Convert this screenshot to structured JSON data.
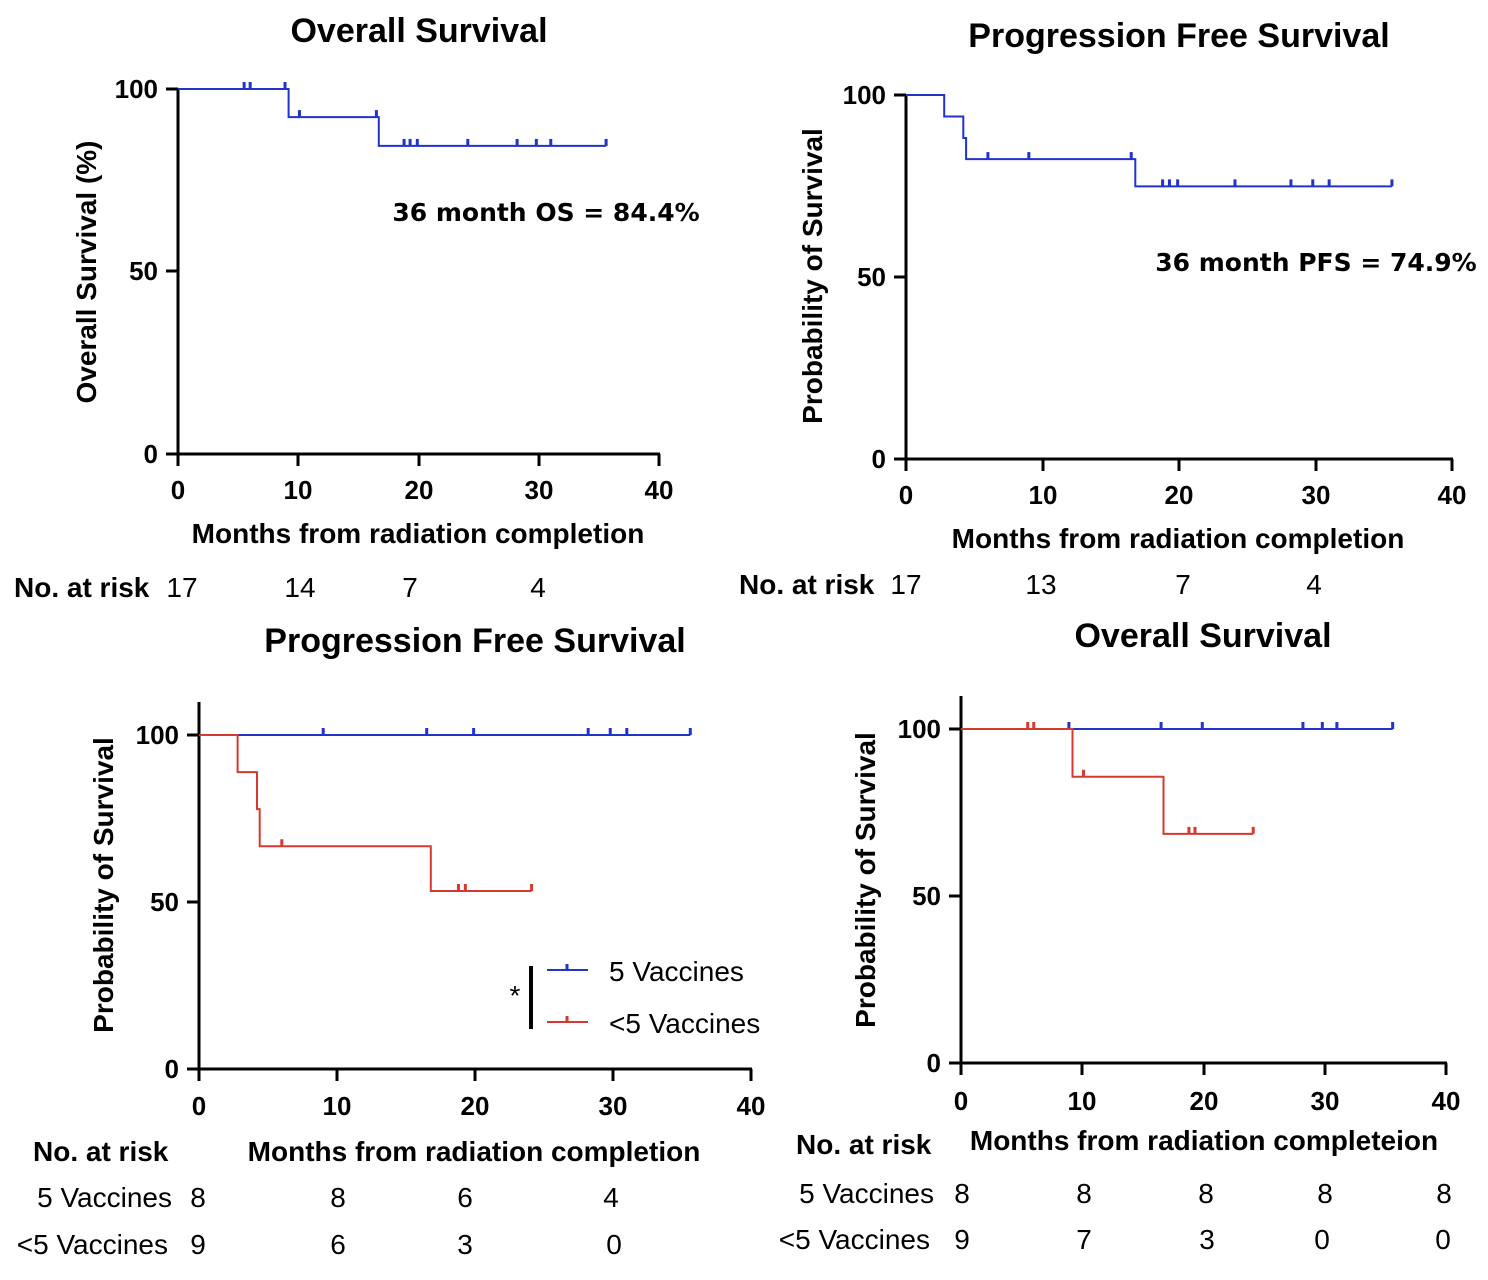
{
  "colors": {
    "blue": "#2233cc",
    "red": "#d63a2e",
    "axis": "#000000"
  },
  "chart_data": [
    {
      "type": "line",
      "step": true,
      "title": "Overall Survival",
      "xlabel": "Months from radiation completion",
      "ylabel": "Overall Survival (%)",
      "xlim": [
        0,
        40
      ],
      "ylim": [
        0,
        100
      ],
      "xticks": [
        "0",
        "10",
        "20",
        "30",
        "40"
      ],
      "yticks": [
        "0",
        "50",
        "100"
      ],
      "grid": false,
      "annotation": "36 month OS = 84.4%",
      "series": [
        {
          "color": "#2233cc",
          "steps": [
            [
              0,
              100
            ],
            [
              9.2,
              92.3
            ],
            [
              16.7,
              84.4
            ],
            [
              35.6,
              84.4
            ]
          ],
          "censor": [
            [
              5.5,
              100
            ],
            [
              6.0,
              100
            ],
            [
              8.9,
              100
            ],
            [
              10.1,
              92.3
            ],
            [
              16.5,
              92.3
            ],
            [
              18.8,
              84.4
            ],
            [
              19.3,
              84.4
            ],
            [
              19.9,
              84.4
            ],
            [
              24.1,
              84.4
            ],
            [
              28.2,
              84.4
            ],
            [
              29.8,
              84.4
            ],
            [
              31.0,
              84.4
            ],
            [
              35.6,
              84.4
            ]
          ]
        }
      ],
      "risk_table": {
        "header": "No. at risk",
        "rows": [
          {
            "label": "",
            "values": [
              "17",
              "14",
              "7",
              "4"
            ]
          }
        ]
      }
    },
    {
      "type": "line",
      "step": true,
      "title": "Progression Free Survival",
      "xlabel": "Months from radiation completion",
      "ylabel": "Probability of Survival",
      "xlim": [
        0,
        40
      ],
      "ylim": [
        0,
        100
      ],
      "xticks": [
        "0",
        "10",
        "20",
        "30",
        "40"
      ],
      "yticks": [
        "0",
        "50",
        "100"
      ],
      "grid": false,
      "annotation": "36 month PFS = 74.9%",
      "series": [
        {
          "color": "#2233cc",
          "steps": [
            [
              0,
              100
            ],
            [
              2.8,
              94.1
            ],
            [
              4.2,
              88.2
            ],
            [
              4.4,
              82.4
            ],
            [
              16.8,
              74.9
            ],
            [
              35.6,
              74.9
            ]
          ],
          "censor": [
            [
              6.0,
              82.4
            ],
            [
              9.0,
              82.4
            ],
            [
              16.5,
              82.4
            ],
            [
              18.8,
              74.9
            ],
            [
              19.3,
              74.9
            ],
            [
              19.9,
              74.9
            ],
            [
              24.1,
              74.9
            ],
            [
              28.2,
              74.9
            ],
            [
              29.8,
              74.9
            ],
            [
              31.0,
              74.9
            ],
            [
              35.6,
              74.9
            ]
          ]
        }
      ],
      "risk_table": {
        "header": "No. at risk",
        "rows": [
          {
            "label": "",
            "values": [
              "17",
              "13",
              "7",
              "4"
            ]
          }
        ]
      }
    },
    {
      "type": "line",
      "step": true,
      "title": "Progression Free Survival",
      "xlabel": "Months from radiation completion",
      "ylabel": "Probability of Survival",
      "xlim": [
        0,
        40
      ],
      "ylim": [
        0,
        100
      ],
      "xticks": [
        "0",
        "10",
        "20",
        "30",
        "40"
      ],
      "yticks": [
        "0",
        "50",
        "100"
      ],
      "grid": false,
      "significance": "*",
      "series": [
        {
          "name": "5 Vaccines",
          "color": "#2233cc",
          "steps": [
            [
              0,
              100
            ],
            [
              35.6,
              100
            ]
          ],
          "censor": [
            [
              9.0,
              100
            ],
            [
              16.5,
              100
            ],
            [
              19.9,
              100
            ],
            [
              28.2,
              100
            ],
            [
              29.8,
              100
            ],
            [
              31.0,
              100
            ],
            [
              35.6,
              100
            ]
          ]
        },
        {
          "name": "<5 Vaccines",
          "color": "#d63a2e",
          "steps": [
            [
              0,
              100
            ],
            [
              2.8,
              88.9
            ],
            [
              4.2,
              77.8
            ],
            [
              4.4,
              66.7
            ],
            [
              16.8,
              53.3
            ],
            [
              24.1,
              53.3
            ]
          ],
          "censor": [
            [
              6.0,
              66.7
            ],
            [
              18.8,
              53.3
            ],
            [
              19.3,
              53.3
            ],
            [
              24.1,
              53.3
            ]
          ]
        }
      ],
      "risk_table": {
        "header": "No. at risk",
        "rows": [
          {
            "label": "5 Vaccines",
            "values": [
              "8",
              "8",
              "6",
              "4"
            ]
          },
          {
            "label": "<5 Vaccines",
            "values": [
              "9",
              "6",
              "3",
              "0"
            ]
          }
        ]
      }
    },
    {
      "type": "line",
      "step": true,
      "title": "Overall Survival",
      "xlabel": "Months from radiation completeion",
      "ylabel": "Probability of Survival",
      "xlim": [
        0,
        40
      ],
      "ylim": [
        0,
        100
      ],
      "xticks": [
        "0",
        "10",
        "20",
        "30",
        "40"
      ],
      "yticks": [
        "0",
        "50",
        "100"
      ],
      "grid": false,
      "series": [
        {
          "color": "#2233cc",
          "steps": [
            [
              0,
              100
            ],
            [
              35.6,
              100
            ]
          ],
          "censor": [
            [
              8.9,
              100
            ],
            [
              16.5,
              100
            ],
            [
              19.9,
              100
            ],
            [
              28.2,
              100
            ],
            [
              29.8,
              100
            ],
            [
              31.0,
              100
            ],
            [
              35.6,
              100
            ]
          ]
        },
        {
          "color": "#d63a2e",
          "steps": [
            [
              0,
              100
            ],
            [
              9.2,
              85.7
            ],
            [
              16.7,
              68.6
            ],
            [
              24.1,
              68.6
            ]
          ],
          "censor": [
            [
              5.5,
              100
            ],
            [
              6.0,
              100
            ],
            [
              10.1,
              85.7
            ],
            [
              18.8,
              68.6
            ],
            [
              19.3,
              68.6
            ],
            [
              24.1,
              68.6
            ]
          ]
        }
      ],
      "risk_table": {
        "header": "No. at risk",
        "rows": [
          {
            "label": "5 Vaccines",
            "values": [
              "8",
              "8",
              "8",
              "8",
              "8"
            ]
          },
          {
            "label": "<5 Vaccines",
            "values": [
              "9",
              "7",
              "3",
              "0",
              "0"
            ]
          }
        ]
      }
    }
  ]
}
